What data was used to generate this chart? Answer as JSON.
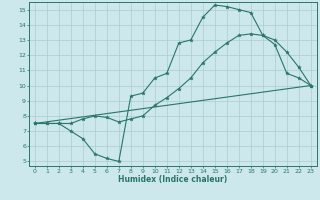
{
  "xlabel": "Humidex (Indice chaleur)",
  "xlim_min": -0.5,
  "xlim_max": 23.5,
  "ylim_min": 4.7,
  "ylim_max": 15.5,
  "xticks": [
    0,
    1,
    2,
    3,
    4,
    5,
    6,
    7,
    8,
    9,
    10,
    11,
    12,
    13,
    14,
    15,
    16,
    17,
    18,
    19,
    20,
    21,
    22,
    23
  ],
  "yticks": [
    5,
    6,
    7,
    8,
    9,
    10,
    11,
    12,
    13,
    14,
    15
  ],
  "bg_color": "#cce8ec",
  "line_color": "#2a7568",
  "grid_color": "#aaccd0",
  "curve1_x": [
    0,
    1,
    2,
    3,
    4,
    5,
    6,
    7,
    8,
    9,
    10,
    11,
    12,
    13,
    14,
    15,
    16,
    17,
    18,
    19,
    20,
    21,
    22,
    23
  ],
  "curve1_y": [
    7.5,
    7.5,
    7.5,
    7.0,
    6.5,
    5.5,
    5.2,
    5.0,
    9.3,
    9.5,
    10.5,
    10.8,
    12.8,
    13.0,
    14.5,
    15.3,
    15.2,
    15.0,
    14.8,
    13.3,
    12.7,
    10.8,
    10.5,
    10.0
  ],
  "curve2_x": [
    0,
    1,
    2,
    3,
    4,
    5,
    6,
    7,
    8,
    9,
    10,
    11,
    12,
    13,
    14,
    15,
    16,
    17,
    18,
    19,
    20,
    21,
    22,
    23
  ],
  "curve2_y": [
    7.5,
    7.5,
    7.5,
    7.5,
    7.8,
    8.0,
    7.9,
    7.6,
    7.8,
    8.0,
    8.7,
    9.2,
    9.8,
    10.5,
    11.5,
    12.2,
    12.8,
    13.3,
    13.4,
    13.3,
    13.0,
    12.2,
    11.2,
    10.0
  ],
  "curve3_x": [
    0,
    23
  ],
  "curve3_y": [
    7.5,
    10.0
  ]
}
